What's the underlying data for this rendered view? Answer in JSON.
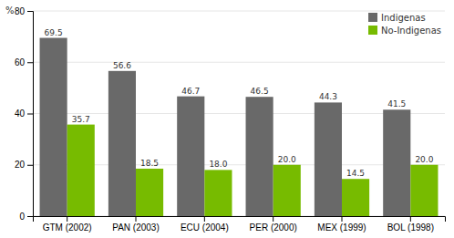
{
  "chart_data": {
    "type": "bar",
    "categories": [
      "GTM (2002)",
      "PAN (2003)",
      "ECU (2004)",
      "PER (2000)",
      "MEX (1999)",
      "BOL (1998)"
    ],
    "series": [
      {
        "name": "Indigenas",
        "color": "#696969",
        "values": [
          69.5,
          56.6,
          46.7,
          46.5,
          44.3,
          41.5
        ]
      },
      {
        "name": "No-Indigenas",
        "color": "#77bb00",
        "values": [
          35.7,
          18.5,
          18.0,
          20.0,
          14.5,
          20.0
        ],
        "value_labels": [
          "35.7",
          "18.5",
          "18.0",
          "20.0",
          "14.5",
          "20.0"
        ]
      }
    ],
    "y_label": "%",
    "ylim": [
      0,
      80
    ],
    "yticks": [
      0,
      20,
      40,
      60,
      80
    ],
    "grid": true,
    "legend": "upper right",
    "data_labels": true
  }
}
